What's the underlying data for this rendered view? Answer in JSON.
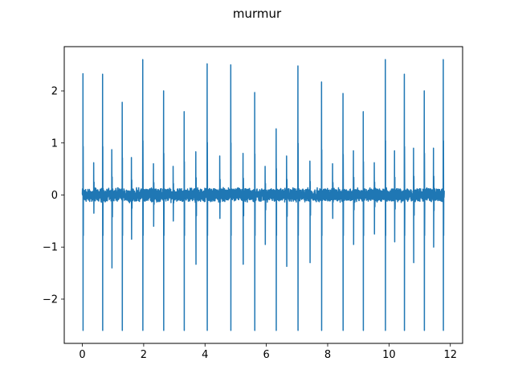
{
  "chart_data": {
    "type": "line",
    "title": "murmur",
    "xlabel": "",
    "ylabel": "",
    "xlim": [
      -0.59,
      12.4
    ],
    "ylim": [
      -2.85,
      2.85
    ],
    "xticks": [
      0,
      2,
      4,
      6,
      8,
      10,
      12
    ],
    "yticks": [
      -2,
      -1,
      0,
      1,
      2
    ],
    "xtick_labels": [
      "0",
      "2",
      "4",
      "6",
      "8",
      "10",
      "12"
    ],
    "ytick_labels": [
      "−2",
      "−1",
      "0",
      "1",
      "2"
    ],
    "grid": false,
    "line_color": "#1f77b4",
    "series": [
      {
        "baseline_noise": 0.1,
        "x_range": [
          0,
          11.8
        ],
        "major_beats": [
          {
            "x": 0.02,
            "max": 2.33,
            "min": -2.6
          },
          {
            "x": 0.66,
            "max": 2.32,
            "min": -2.6
          },
          {
            "x": 1.3,
            "max": 1.78,
            "min": -2.6
          },
          {
            "x": 1.97,
            "max": 2.6,
            "min": -2.6
          },
          {
            "x": 2.65,
            "max": 2.0,
            "min": -2.6
          },
          {
            "x": 3.32,
            "max": 1.6,
            "min": -2.6
          },
          {
            "x": 4.07,
            "max": 2.52,
            "min": -2.6
          },
          {
            "x": 4.84,
            "max": 2.5,
            "min": -2.6
          },
          {
            "x": 5.62,
            "max": 1.97,
            "min": -2.6
          },
          {
            "x": 6.32,
            "max": 1.27,
            "min": -2.6
          },
          {
            "x": 7.03,
            "max": 2.48,
            "min": -2.6
          },
          {
            "x": 7.8,
            "max": 2.17,
            "min": -2.6
          },
          {
            "x": 8.5,
            "max": 1.95,
            "min": -2.6
          },
          {
            "x": 9.16,
            "max": 1.6,
            "min": -2.6
          },
          {
            "x": 9.88,
            "max": 2.6,
            "min": -2.6
          },
          {
            "x": 10.5,
            "max": 2.32,
            "min": -2.6
          },
          {
            "x": 11.15,
            "max": 2.0,
            "min": -2.6
          },
          {
            "x": 11.77,
            "max": 2.6,
            "min": -2.6
          }
        ],
        "minor_beats": [
          {
            "x": 0.37,
            "max": 0.62,
            "min": -0.35
          },
          {
            "x": 0.96,
            "max": 0.87,
            "min": -1.4
          },
          {
            "x": 1.6,
            "max": 0.72,
            "min": -0.85
          },
          {
            "x": 2.32,
            "max": 0.6,
            "min": -0.6
          },
          {
            "x": 2.96,
            "max": 0.55,
            "min": -0.5
          },
          {
            "x": 3.7,
            "max": 0.83,
            "min": -1.33
          },
          {
            "x": 4.48,
            "max": 0.75,
            "min": -0.45
          },
          {
            "x": 5.24,
            "max": 0.8,
            "min": -1.33
          },
          {
            "x": 5.96,
            "max": 0.55,
            "min": -0.95
          },
          {
            "x": 6.66,
            "max": 0.75,
            "min": -1.37
          },
          {
            "x": 7.42,
            "max": 0.65,
            "min": -1.3
          },
          {
            "x": 8.16,
            "max": 0.6,
            "min": -0.45
          },
          {
            "x": 8.84,
            "max": 0.85,
            "min": -0.95
          },
          {
            "x": 9.52,
            "max": 0.62,
            "min": -0.75
          },
          {
            "x": 10.18,
            "max": 0.85,
            "min": -0.9
          },
          {
            "x": 10.8,
            "max": 0.9,
            "min": -1.3
          },
          {
            "x": 11.45,
            "max": 0.9,
            "min": -1.0
          }
        ]
      }
    ]
  }
}
